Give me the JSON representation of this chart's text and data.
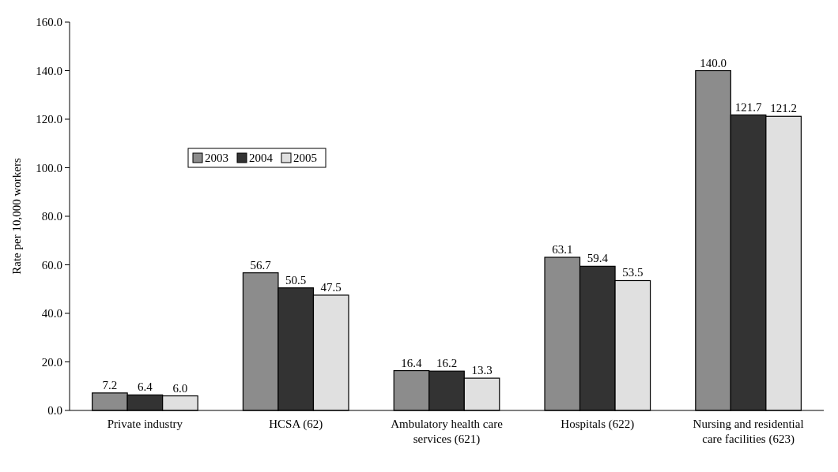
{
  "chart_data": {
    "type": "bar",
    "ylabel": "Rate per 10,000 workers",
    "categories": [
      "Private industry",
      "HCSA (62)",
      "Ambulatory health care services (621)",
      "Hospitals (622)",
      "Nursing and residential care facilities (623)"
    ],
    "series": [
      {
        "name": "2003",
        "color": "#8c8c8c",
        "values": [
          7.2,
          56.7,
          16.4,
          63.1,
          140.0
        ],
        "value_labels": [
          "7.2",
          "56.7",
          "16.4",
          "63.1",
          "140.0"
        ]
      },
      {
        "name": "2004",
        "color": "#333333",
        "values": [
          6.4,
          50.5,
          16.2,
          59.4,
          121.7
        ],
        "value_labels": [
          "6.4",
          "50.5",
          "16.2",
          "59.4",
          "121.7"
        ]
      },
      {
        "name": "2005",
        "color": "#e0e0e0",
        "values": [
          6.0,
          47.5,
          13.3,
          53.5,
          121.2
        ],
        "value_labels": [
          "6.0",
          "47.5",
          "13.3",
          "53.5",
          "121.2"
        ]
      }
    ],
    "ylim": [
      0,
      160
    ],
    "yticks": [
      {
        "value": 0,
        "label": "0.0"
      },
      {
        "value": 20,
        "label": "20.0"
      },
      {
        "value": 40,
        "label": "40.0"
      },
      {
        "value": 60,
        "label": "60.0"
      },
      {
        "value": 80,
        "label": "80.0"
      },
      {
        "value": 100,
        "label": "100.0"
      },
      {
        "value": 120,
        "label": "120.0"
      },
      {
        "value": 140,
        "label": "140.0"
      },
      {
        "value": 160,
        "label": "160.0"
      }
    ],
    "legend": "top left",
    "grid": false
  }
}
